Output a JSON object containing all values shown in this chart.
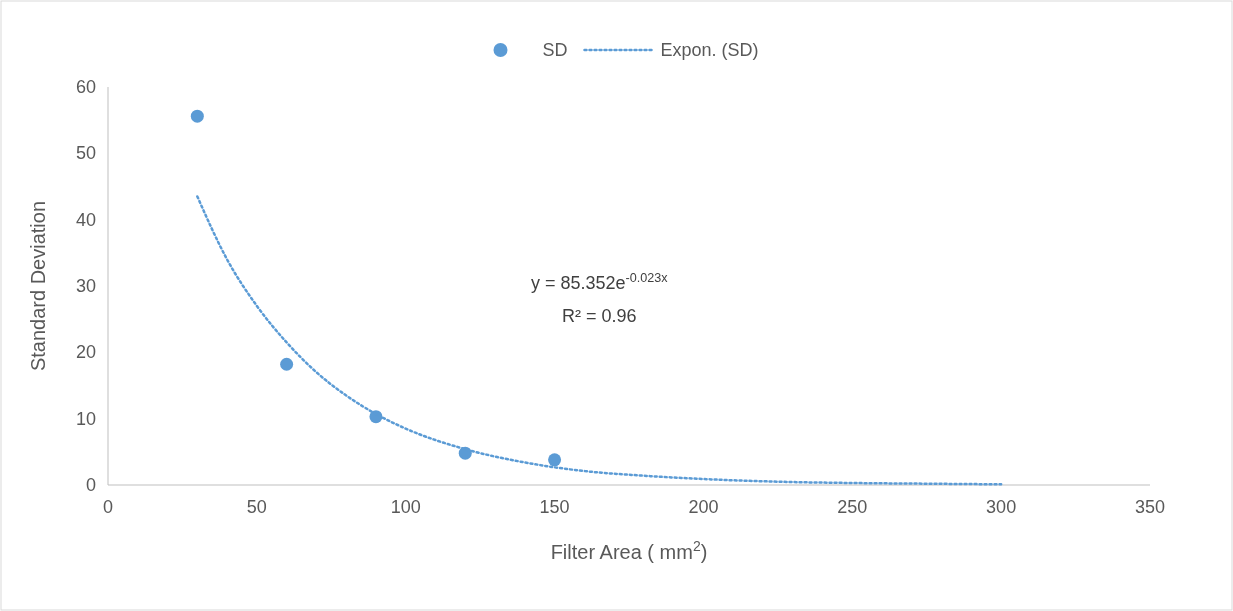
{
  "chart_data": {
    "type": "scatter",
    "xlabel": "Filter Area ( mm$^{2}$)",
    "ylabel": "Standard Deviation",
    "xlim": [
      0,
      350
    ],
    "xticks": [
      0,
      50,
      100,
      150,
      200,
      250,
      300,
      350
    ],
    "ylim": [
      0,
      60
    ],
    "yticks": [
      0,
      10,
      20,
      30,
      40,
      50,
      60
    ],
    "grid": false,
    "legend": "top",
    "annotations": [
      "y = 85.352e$^{-0.023x}$",
      "R² = 0.96"
    ],
    "series": [
      {
        "name": "SD",
        "marker": "circle",
        "color": "#5b9bd5",
        "x": [
          30,
          60,
          90,
          120,
          150
        ],
        "values": [
          55.6,
          18.2,
          10.3,
          4.8,
          3.8
        ]
      },
      {
        "name": "Expon. (SD)",
        "type": "line",
        "marker": "none",
        "line_style": "dotted",
        "color": "#5b9bd5",
        "x": [
          30,
          40,
          50,
          60,
          70,
          80,
          90,
          100,
          120,
          140,
          160,
          180,
          200,
          225,
          250,
          275,
          300
        ],
        "values": [
          43.5,
          34,
          27,
          21.5,
          17,
          13.5,
          10.7,
          8.5,
          5.4,
          3.4,
          2.1,
          1.4,
          0.9,
          0.5,
          0.3,
          0.2,
          0.1
        ]
      }
    ]
  }
}
